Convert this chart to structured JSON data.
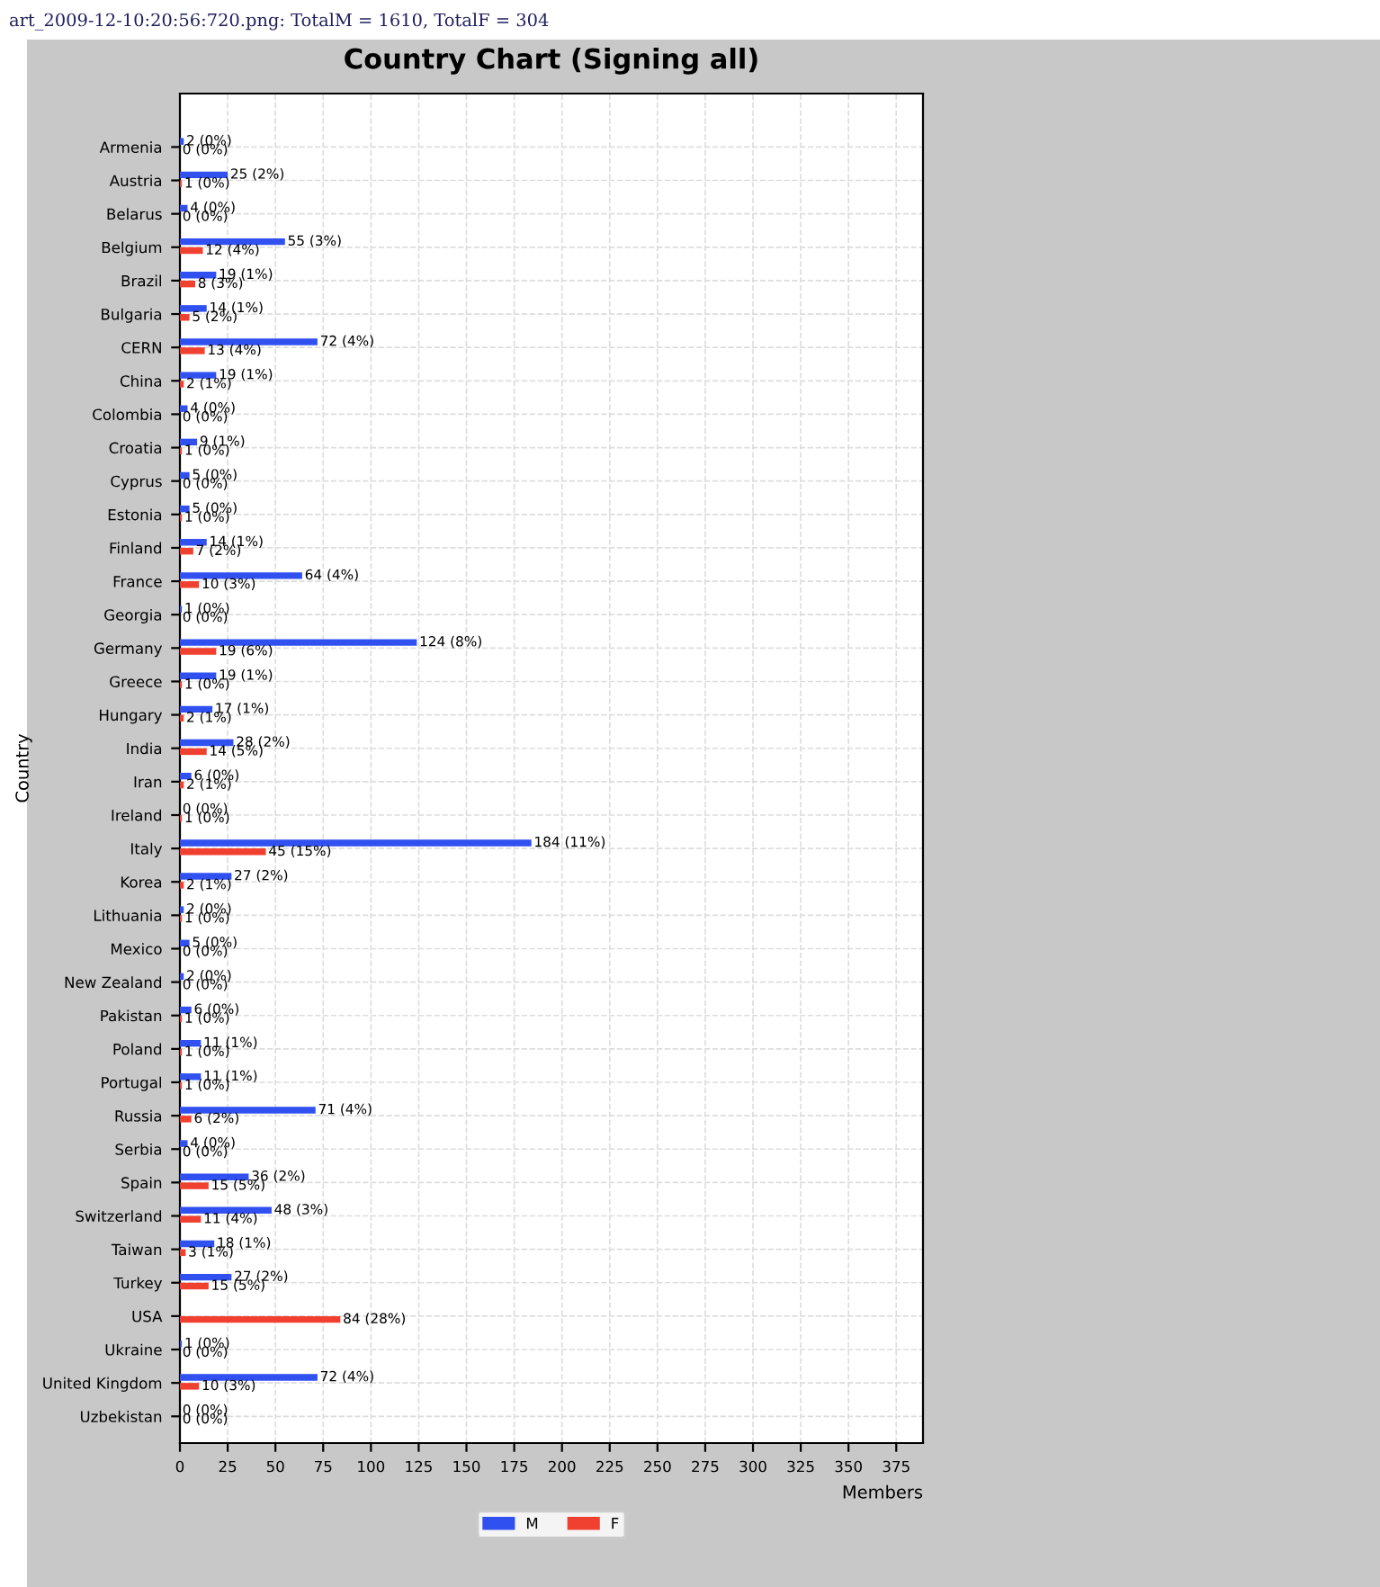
{
  "chart_data": {
    "type": "bar",
    "orientation": "horizontal",
    "title": "Country Chart (Signing all)",
    "ylabel": "Country",
    "xlabel": "Members",
    "annotations": [
      "art_2009-12-10:20:56:720.png: TotalM = 1610, TotalF = 304"
    ],
    "categories": [
      "Armenia",
      "Austria",
      "Belarus",
      "Belgium",
      "Brazil",
      "Bulgaria",
      "CERN",
      "China",
      "Colombia",
      "Croatia",
      "Cyprus",
      "Estonia",
      "Finland",
      "France",
      "Georgia",
      "Germany",
      "Greece",
      "Hungary",
      "India",
      "Iran",
      "Ireland",
      "Italy",
      "Korea",
      "Lithuania",
      "Mexico",
      "New Zealand",
      "Pakistan",
      "Poland",
      "Portugal",
      "Russia",
      "Serbia",
      "Spain",
      "Switzerland",
      "Taiwan",
      "Turkey",
      "USA",
      "Ukraine",
      "United Kingdom",
      "Uzbekistan"
    ],
    "series": [
      {
        "name": "M",
        "color": "#3050f0",
        "values": [
          2,
          25,
          4,
          55,
          19,
          14,
          72,
          19,
          4,
          9,
          5,
          5,
          14,
          64,
          1,
          124,
          19,
          17,
          28,
          6,
          0,
          184,
          27,
          2,
          5,
          2,
          6,
          11,
          11,
          71,
          4,
          36,
          48,
          18,
          27,
          null,
          1,
          72,
          0
        ],
        "value_labels": [
          "2 (0%)",
          "25 (2%)",
          "4 (0%)",
          "55 (3%)",
          "19 (1%)",
          "14 (1%)",
          "72 (4%)",
          "19 (1%)",
          "4 (0%)",
          "9 (1%)",
          "5 (0%)",
          "5 (0%)",
          "14 (1%)",
          "64 (4%)",
          "1 (0%)",
          "124 (8%)",
          "19 (1%)",
          "17 (1%)",
          "28 (2%)",
          "6 (0%)",
          "0 (0%)",
          "184 (11%)",
          "27 (2%)",
          "2 (0%)",
          "5 (0%)",
          "2 (0%)",
          "6 (0%)",
          "11 (1%)",
          "11 (1%)",
          "71 (4%)",
          "4 (0%)",
          "36 (2%)",
          "48 (3%)",
          "18 (1%)",
          "27 (2%)",
          null,
          "1 (0%)",
          "72 (4%)",
          "0 (0%)"
        ]
      },
      {
        "name": "F",
        "color": "#f04030",
        "values": [
          0,
          1,
          0,
          12,
          8,
          5,
          13,
          2,
          0,
          1,
          0,
          1,
          7,
          10,
          0,
          19,
          1,
          2,
          14,
          2,
          1,
          45,
          2,
          1,
          0,
          0,
          1,
          1,
          1,
          6,
          0,
          15,
          11,
          3,
          15,
          84,
          0,
          10,
          0
        ],
        "value_labels": [
          "0 (0%)",
          "1 (0%)",
          "0 (0%)",
          "12 (4%)",
          "8 (3%)",
          "5 (2%)",
          "13 (4%)",
          "2 (1%)",
          "0 (0%)",
          "1 (0%)",
          "0 (0%)",
          "1 (0%)",
          "7 (2%)",
          "10 (3%)",
          "0 (0%)",
          "19 (6%)",
          "1 (0%)",
          "2 (1%)",
          "14 (5%)",
          "2 (1%)",
          "1 (0%)",
          "45 (15%)",
          "2 (1%)",
          "1 (0%)",
          "0 (0%)",
          "0 (0%)",
          "1 (0%)",
          "1 (0%)",
          "1 (0%)",
          "6 (2%)",
          "0 (0%)",
          "15 (5%)",
          "11 (4%)",
          "3 (1%)",
          "15 (5%)",
          "84 (28%)",
          "0 (0%)",
          "10 (3%)",
          "0 (0%)"
        ]
      }
    ],
    "xlim": [
      0,
      389
    ],
    "xticks": [
      0,
      25,
      50,
      75,
      100,
      125,
      150,
      175,
      200,
      225,
      250,
      275,
      300,
      325,
      350,
      375
    ],
    "grid": true,
    "legend": "bottom"
  }
}
